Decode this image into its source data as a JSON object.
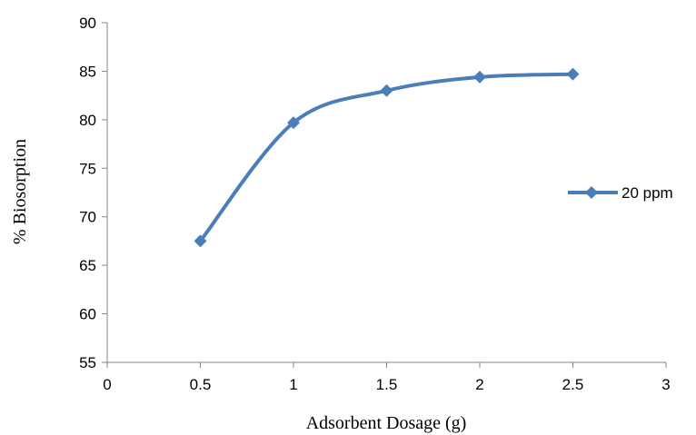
{
  "chart_data": {
    "type": "line",
    "title": "",
    "xlabel": "Adsorbent Dosage (g)",
    "ylabel": "% Biosorption",
    "xlim": [
      0,
      3
    ],
    "ylim": [
      55,
      90
    ],
    "x_ticks": [
      "0",
      "0.5",
      "1",
      "1.5",
      "2",
      "2.5",
      "3"
    ],
    "y_ticks": [
      "55",
      "60",
      "65",
      "70",
      "75",
      "80",
      "85",
      "90"
    ],
    "grid": false,
    "legend_position": "right",
    "series": [
      {
        "name": "20 ppm",
        "color": "#4a7ebb",
        "marker": "diamond",
        "smooth": true,
        "x": [
          0.5,
          1,
          1.5,
          2,
          2.5
        ],
        "y": [
          67.5,
          79.7,
          83.0,
          84.4,
          84.7
        ]
      }
    ]
  }
}
